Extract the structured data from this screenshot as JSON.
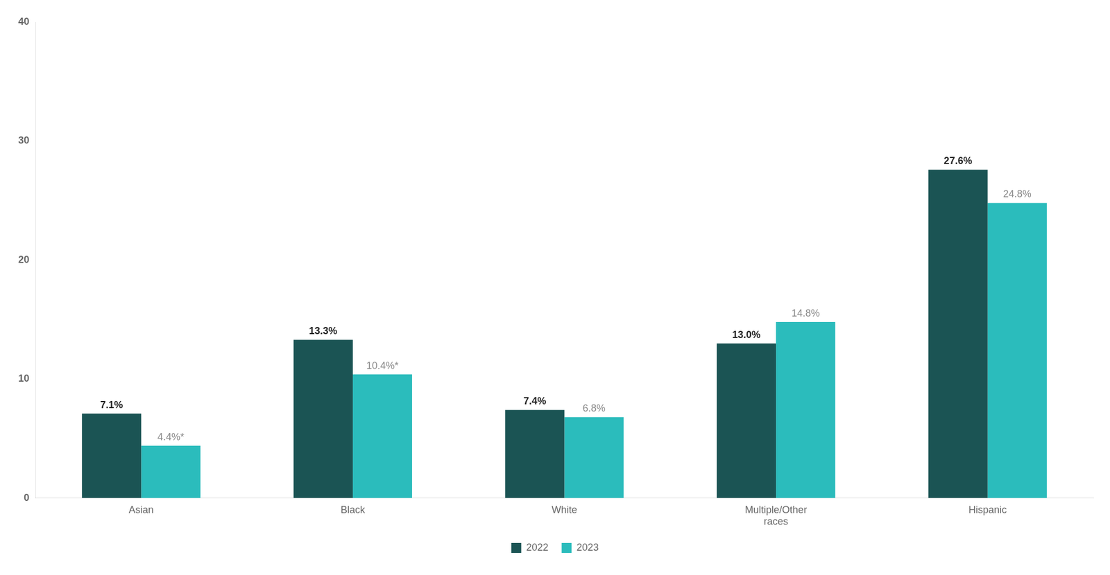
{
  "chart_data": {
    "type": "bar",
    "categories": [
      "Asian",
      "Black",
      "White",
      "Multiple/Other\nraces",
      "Hispanic"
    ],
    "series": [
      {
        "name": "2022",
        "color": "#1b5454",
        "values": [
          7.1,
          13.3,
          7.4,
          13.0,
          27.6
        ],
        "value_labels": [
          "7.1%",
          "13.3%",
          "7.4%",
          "13.0%",
          "27.6%"
        ]
      },
      {
        "name": "2023",
        "color": "#2bbcbc",
        "values": [
          4.4,
          10.4,
          6.8,
          14.8,
          24.8
        ],
        "value_labels": [
          "4.4%*",
          "10.4%*",
          "6.8%",
          "14.8%",
          "24.8%"
        ]
      }
    ],
    "ylim": [
      0,
      40
    ],
    "yticks": [
      0,
      10,
      20,
      30,
      40
    ],
    "grid": false,
    "legend": "bottom",
    "data_labels": true
  }
}
